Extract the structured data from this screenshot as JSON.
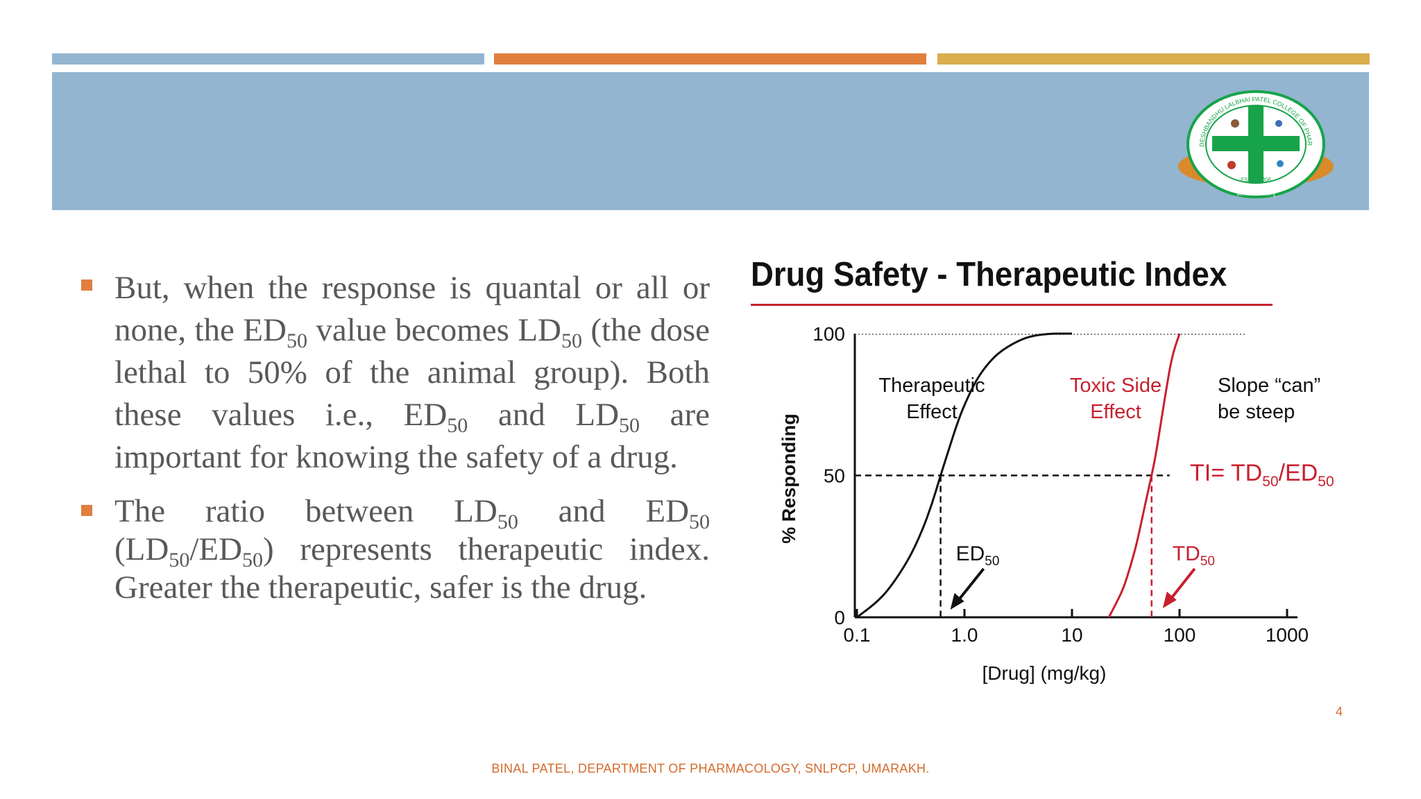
{
  "colors": {
    "stripe_blue": "#93B5D0",
    "stripe_orange": "#E07F3E",
    "stripe_gold": "#D8AE4E",
    "header_band": "#93B5D0",
    "body_text": "#595959",
    "bullet_marker": "#E07F3E",
    "accent_red": "#C8202F",
    "footer_text": "#D46A2B",
    "logo_green": "#17A34A",
    "logo_orange": "#D98A2B"
  },
  "logo": {
    "ring_text": "DESHBANDHU LALBHAI PATEL COLLEGE OF PHARMACY",
    "established": "ESTD. 2006",
    "ribbon_text": "ज्ञानं परमं बलम्"
  },
  "bullets": [
    {
      "segments": [
        {
          "t": "But, when the response is quantal or all or none, the ED"
        },
        {
          "sub": "50"
        },
        {
          "t": " value becomes LD"
        },
        {
          "sub": "50"
        },
        {
          "t": " (the dose lethal to 50% of the animal group). Both these values i.e., ED"
        },
        {
          "sub": "50"
        },
        {
          "t": " and LD"
        },
        {
          "sub": "50"
        },
        {
          "t": " are important for knowing the safety of a drug."
        }
      ]
    },
    {
      "segments": [
        {
          "t": "The ratio between LD"
        },
        {
          "sub": "50"
        },
        {
          "t": " and ED"
        },
        {
          "sub": "50"
        },
        {
          "t": " (LD"
        },
        {
          "sub": "50"
        },
        {
          "t": "/ED"
        },
        {
          "sub": "50"
        },
        {
          "t": ") represents therapeutic index. Greater the therapeutic, safer is the drug."
        }
      ]
    }
  ],
  "chart_data": {
    "type": "line",
    "title": "Drug Safety - Therapeutic Index",
    "xlabel": "[Drug] (mg/kg)",
    "ylabel": "% Responding",
    "x_scale": "log",
    "xlim": [
      0.1,
      1000
    ],
    "ylim": [
      0,
      100
    ],
    "x_ticks": [
      "0.1",
      "1.0",
      "10",
      "100",
      "1000"
    ],
    "y_ticks": [
      "0",
      "50",
      "100"
    ],
    "series": [
      {
        "x": [
          0.1,
          0.15,
          0.2,
          0.3,
          0.4,
          0.5,
          0.6,
          0.7,
          0.85,
          1.0,
          1.3,
          1.7,
          2.2,
          3.0,
          4.0,
          6.0,
          10
        ],
        "y": [
          0,
          5,
          10,
          20,
          30,
          40,
          50,
          58,
          68,
          75,
          84,
          90,
          94,
          97,
          99,
          100,
          100
        ]
      },
      {
        "x": [
          22,
          25,
          30,
          35,
          40,
          45,
          50,
          55,
          60,
          68,
          75,
          85,
          100
        ],
        "y": [
          0,
          4,
          10,
          18,
          26,
          35,
          43,
          50,
          57,
          70,
          80,
          92,
          100
        ]
      }
    ],
    "annotations": {
      "therapeutic_effect": "Therapeutic\nEffect",
      "toxic_side_effect": "Toxic Side\nEffect",
      "slope_note": "Slope “can”\nbe steep",
      "ti_formula": {
        "t1": "TI= TD",
        "s1": "50",
        "t2": "/ED",
        "s2": "50"
      },
      "ed50": {
        "t": "ED",
        "s": "50",
        "x": 0.6
      },
      "td50": {
        "t": "TD",
        "s": "50",
        "x": 55
      }
    }
  },
  "page_number": "4",
  "footer": "BINAL PATEL, DEPARTMENT OF PHARMACOLOGY, SNLPCP, UMARAKH."
}
